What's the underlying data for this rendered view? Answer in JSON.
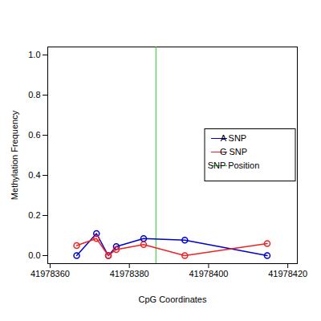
{
  "chart_data": {
    "type": "line",
    "x_label": "CpG Coordinates",
    "y_label": "Methylation Frequency",
    "x": [
      41978366.7,
      41978371.7,
      41978374.7,
      41978376.7,
      41978383.6,
      41978394,
      41978414.8
    ],
    "series": [
      {
        "name": "A SNP",
        "color": "#0000cc",
        "values": [
          0,
          0.11,
          0,
          0.045,
          0.085,
          0.077,
          0
        ],
        "marker": "circle"
      },
      {
        "name": "G SNP",
        "color": "#ee2222",
        "values": [
          0.05,
          0.085,
          0,
          0.03,
          0.055,
          0,
          0.06
        ],
        "marker": "circle"
      }
    ],
    "vlines": [
      {
        "name": "SNP Position",
        "color": "#22cc22",
        "x": 41978386.7
      }
    ],
    "xlim": [
      41978359.4,
      41978422.4
    ],
    "xticks": [
      41978360,
      41978380,
      41978400,
      41978420
    ],
    "ylim": [
      -0.04,
      1.04
    ],
    "yticks": [
      {
        "value": 0,
        "label": "0.0"
      },
      {
        "value": 0.2,
        "label": "0.2"
      },
      {
        "value": 0.4,
        "label": "0.4"
      },
      {
        "value": 0.6,
        "label": "0.6"
      },
      {
        "value": 0.8,
        "label": "0.8"
      },
      {
        "value": 1,
        "label": "1.0"
      }
    ],
    "legend": "right",
    "grid": false
  }
}
